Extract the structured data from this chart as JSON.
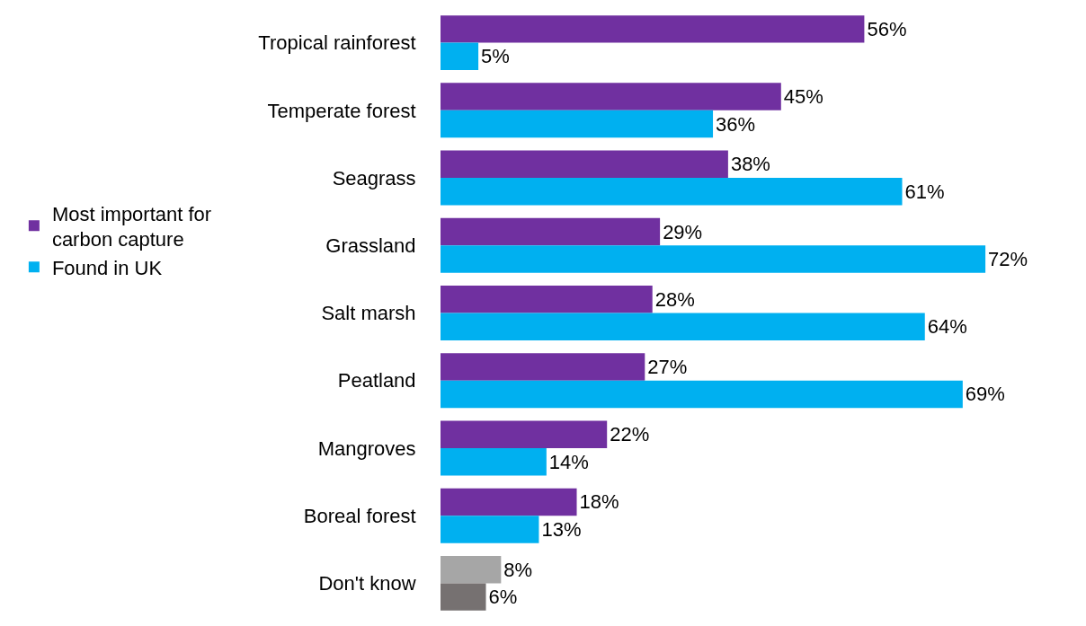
{
  "chart_data": {
    "type": "bar",
    "orientation": "horizontal",
    "categories": [
      "Tropical rainforest",
      "Temperate forest",
      "Seagrass",
      "Grassland",
      "Salt marsh",
      "Peatland",
      "Mangroves",
      "Boreal forest",
      "Don't know"
    ],
    "series": [
      {
        "name": "Most important for carbon capture",
        "colors": [
          "#7030a0",
          "#7030a0",
          "#7030a0",
          "#7030a0",
          "#7030a0",
          "#7030a0",
          "#7030a0",
          "#7030a0",
          "#a6a6a6"
        ],
        "values": [
          56,
          45,
          38,
          29,
          28,
          27,
          22,
          18,
          8
        ],
        "value_labels": [
          "56%",
          "45%",
          "38%",
          "29%",
          "28%",
          "27%",
          "22%",
          "18%",
          "8%"
        ]
      },
      {
        "name": "Found in UK",
        "colors": [
          "#00b0f0",
          "#00b0f0",
          "#00b0f0",
          "#00b0f0",
          "#00b0f0",
          "#00b0f0",
          "#00b0f0",
          "#00b0f0",
          "#767171"
        ],
        "values": [
          5,
          36,
          61,
          72,
          64,
          69,
          14,
          13,
          6
        ],
        "value_labels": [
          "5%",
          "36%",
          "61%",
          "72%",
          "64%",
          "69%",
          "14%",
          "13%",
          "6%"
        ]
      }
    ],
    "tick_labels": "y",
    "legend": "left"
  }
}
